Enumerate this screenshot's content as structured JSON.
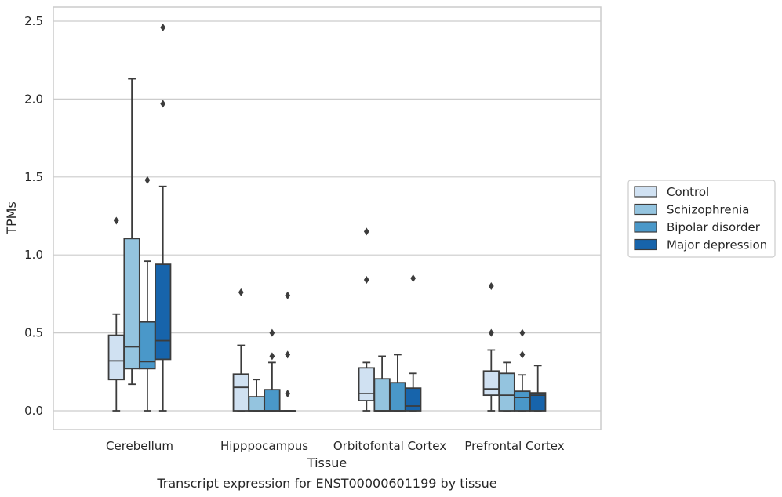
{
  "chart_data": {
    "type": "boxplot",
    "title": "",
    "caption": "Transcript expression for ENST00000601199 by tissue",
    "xlabel": "Tissue",
    "ylabel": "TPMs",
    "ylim": [
      -0.12,
      2.6
    ],
    "yticks": [
      0.0,
      0.5,
      1.0,
      1.5,
      2.0,
      2.5
    ],
    "ytick_labels": [
      "0.0",
      "0.5",
      "1.0",
      "1.5",
      "2.0",
      "2.5"
    ],
    "grid": "horizontal",
    "legend_position": "right",
    "categories": [
      "Cerebellum",
      "Hipppocampus",
      "Orbitofontal Cortex",
      "Prefrontal Cortex"
    ],
    "series": [
      {
        "name": "Control",
        "color": "#d0e1f2",
        "boxes": [
          {
            "whisker_low": 0.0,
            "q1": 0.2,
            "median": 0.32,
            "q3": 0.485,
            "whisker_high": 0.62,
            "outliers": [
              1.22
            ]
          },
          {
            "whisker_low": 0.0,
            "q1": 0.0,
            "median": 0.15,
            "q3": 0.235,
            "whisker_high": 0.42,
            "outliers": [
              0.76
            ]
          },
          {
            "whisker_low": 0.0,
            "q1": 0.065,
            "median": 0.11,
            "q3": 0.275,
            "whisker_high": 0.31,
            "outliers": [
              0.84,
              1.15
            ]
          },
          {
            "whisker_low": 0.0,
            "q1": 0.1,
            "median": 0.14,
            "q3": 0.255,
            "whisker_high": 0.39,
            "outliers": [
              0.5,
              0.8
            ]
          }
        ]
      },
      {
        "name": "Schizophrenia",
        "color": "#94c4df",
        "boxes": [
          {
            "whisker_low": 0.17,
            "q1": 0.27,
            "median": 0.41,
            "q3": 1.105,
            "whisker_high": 2.13,
            "outliers": []
          },
          {
            "whisker_low": 0.0,
            "q1": 0.0,
            "median": 0.0,
            "q3": 0.09,
            "whisker_high": 0.2,
            "outliers": []
          },
          {
            "whisker_low": 0.0,
            "q1": 0.0,
            "median": 0.0,
            "q3": 0.205,
            "whisker_high": 0.35,
            "outliers": []
          },
          {
            "whisker_low": 0.0,
            "q1": 0.0,
            "median": 0.1,
            "q3": 0.24,
            "whisker_high": 0.31,
            "outliers": []
          }
        ]
      },
      {
        "name": "Bipolar disorder",
        "color": "#4a98c9",
        "boxes": [
          {
            "whisker_low": 0.0,
            "q1": 0.27,
            "median": 0.315,
            "q3": 0.57,
            "whisker_high": 0.96,
            "outliers": [
              1.48
            ]
          },
          {
            "whisker_low": 0.0,
            "q1": 0.0,
            "median": 0.0,
            "q3": 0.135,
            "whisker_high": 0.31,
            "outliers": [
              0.35,
              0.5
            ]
          },
          {
            "whisker_low": 0.0,
            "q1": 0.0,
            "median": 0.0,
            "q3": 0.18,
            "whisker_high": 0.36,
            "outliers": []
          },
          {
            "whisker_low": 0.0,
            "q1": 0.0,
            "median": 0.085,
            "q3": 0.125,
            "whisker_high": 0.23,
            "outliers": [
              0.36,
              0.5
            ]
          }
        ]
      },
      {
        "name": "Major depression",
        "color": "#1764ab",
        "boxes": [
          {
            "whisker_low": 0.0,
            "q1": 0.33,
            "median": 0.45,
            "q3": 0.94,
            "whisker_high": 1.44,
            "outliers": [
              1.97,
              2.46
            ]
          },
          {
            "whisker_low": 0.0,
            "q1": 0.0,
            "median": 0.0,
            "q3": 0.0,
            "whisker_high": 0.0,
            "outliers": [
              0.11,
              0.36,
              0.74
            ]
          },
          {
            "whisker_low": 0.0,
            "q1": 0.0,
            "median": 0.03,
            "q3": 0.145,
            "whisker_high": 0.24,
            "outliers": [
              0.85
            ]
          },
          {
            "whisker_low": 0.0,
            "q1": 0.0,
            "median": 0.1,
            "q3": 0.115,
            "whisker_high": 0.29,
            "outliers": []
          }
        ]
      }
    ]
  }
}
